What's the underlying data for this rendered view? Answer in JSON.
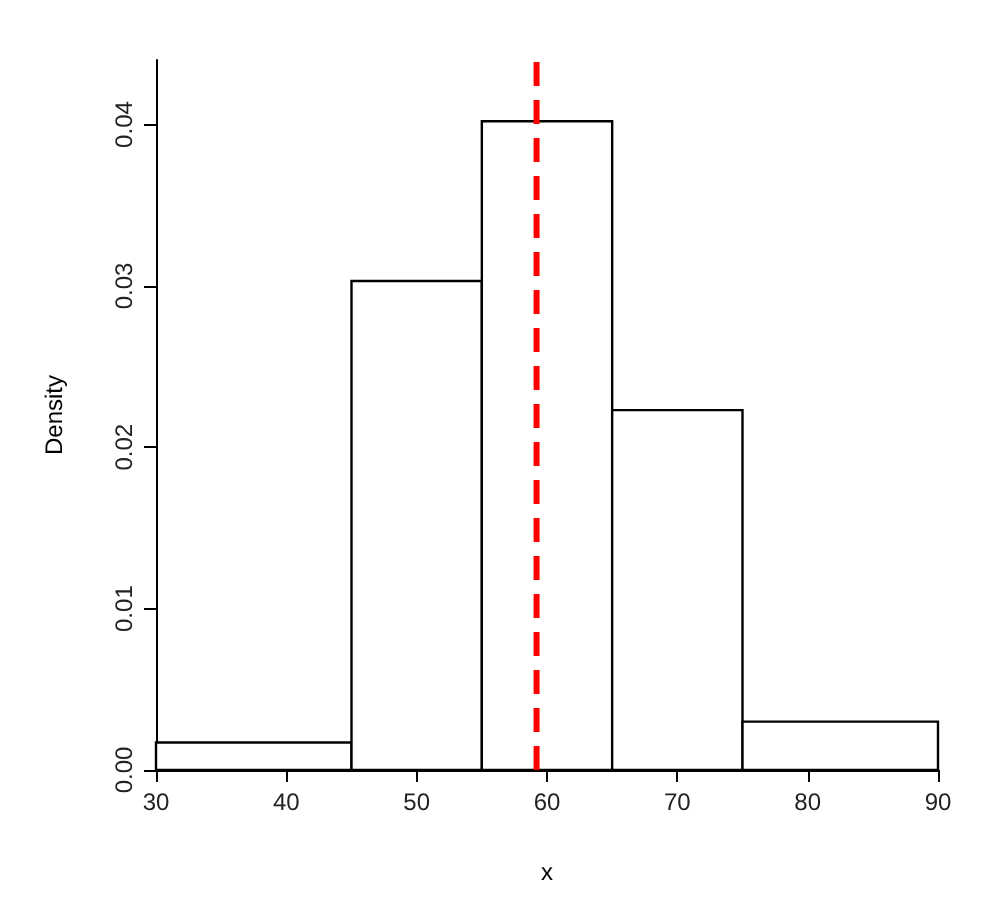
{
  "chart_data": {
    "type": "histogram",
    "xlabel": "x",
    "ylabel": "Density",
    "bins": [
      30,
      45,
      55,
      65,
      75,
      90
    ],
    "values": [
      0.0017,
      0.0303,
      0.0402,
      0.0223,
      0.003
    ],
    "color": "#ffffff",
    "xlim": [
      30,
      90
    ],
    "xticks": [
      30,
      40,
      50,
      60,
      70,
      80,
      90
    ],
    "ylim": [
      0,
      0.044
    ],
    "yticks": [
      {
        "value": 0,
        "label": "0.00"
      },
      {
        "value": 0.01,
        "label": "0.01"
      },
      {
        "value": 0.02,
        "label": "0.02"
      },
      {
        "value": 0.03,
        "label": "0.03"
      },
      {
        "value": 0.04,
        "label": "0.04"
      }
    ],
    "ref_lines": [
      {
        "axis": "x",
        "value": 59.2,
        "color": "#ff0000",
        "line_style": "dashed"
      }
    ],
    "grid": false
  }
}
